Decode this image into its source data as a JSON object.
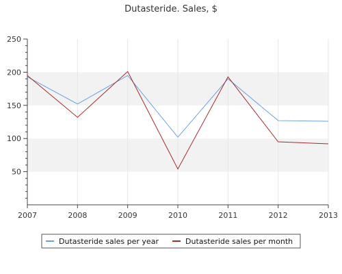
{
  "chart_data": {
    "type": "line",
    "title": "Dutasteride. Sales, $",
    "xlabel": "",
    "ylabel": "",
    "categories": [
      "2007",
      "2008",
      "2009",
      "2010",
      "2011",
      "2012",
      "2013"
    ],
    "series": [
      {
        "name": "Dutasteride sales per year",
        "color": "#6a9ee0",
        "values": [
          193,
          152,
          195,
          102,
          190,
          127,
          126
        ]
      },
      {
        "name": "Dutasteride sales per month",
        "color": "#a52a2a",
        "values": [
          195,
          132,
          201,
          54,
          193,
          95,
          92
        ]
      }
    ],
    "ylim": [
      0,
      250
    ],
    "yticks": [
      50,
      100,
      150,
      200,
      250
    ],
    "grid": true,
    "band_colors": [
      "#ffffff",
      "#f2f2f2"
    ],
    "legend_position": "bottom"
  }
}
